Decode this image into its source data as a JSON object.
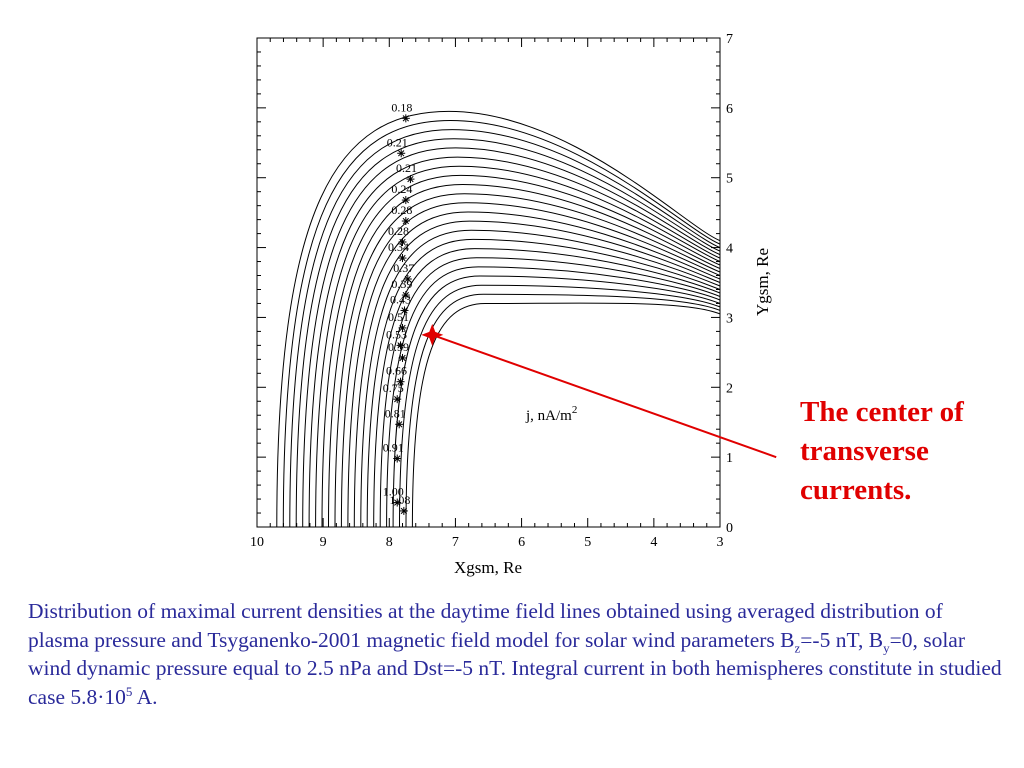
{
  "chart_data": {
    "type": "line",
    "xlabel": "Xgsm, Re",
    "ylabel": "Ygsm, Re",
    "xlim": [
      10,
      3
    ],
    "ylim": [
      0,
      7
    ],
    "x_ticks": [
      "10",
      "9",
      "8",
      "7",
      "6",
      "5",
      "4",
      "3"
    ],
    "y_ticks": [
      "0",
      "1",
      "2",
      "3",
      "4",
      "5",
      "6",
      "7"
    ],
    "y_axis_side": "right",
    "grid": false,
    "inner_label": {
      "text": "j, nA/m",
      "sup": "2"
    },
    "field_lines": {
      "count": 22,
      "apex_y_outer": 5.95,
      "apex_y_inner": 3.2,
      "right_y_outer": 4.1,
      "right_y_inner": 3.05
    },
    "current_density_labels": [
      {
        "label": "0.18",
        "x": 7.75,
        "y": 5.85
      },
      {
        "label": "0.21",
        "x": 7.82,
        "y": 5.35
      },
      {
        "label": "0.21",
        "x": 7.68,
        "y": 4.98
      },
      {
        "label": "0.24",
        "x": 7.75,
        "y": 4.68
      },
      {
        "label": "0.28",
        "x": 7.75,
        "y": 4.38
      },
      {
        "label": "0.28",
        "x": 7.8,
        "y": 4.08
      },
      {
        "label": "0.34",
        "x": 7.8,
        "y": 3.85
      },
      {
        "label": "0.37",
        "x": 7.72,
        "y": 3.55
      },
      {
        "label": "0.39",
        "x": 7.75,
        "y": 3.32
      },
      {
        "label": "0.43",
        "x": 7.77,
        "y": 3.1
      },
      {
        "label": "0.51",
        "x": 7.8,
        "y": 2.85
      },
      {
        "label": "0.53",
        "x": 7.83,
        "y": 2.6
      },
      {
        "label": "0.59",
        "x": 7.8,
        "y": 2.42
      },
      {
        "label": "0.66",
        "x": 7.83,
        "y": 2.08
      },
      {
        "label": "0.75",
        "x": 7.88,
        "y": 1.83
      },
      {
        "label": "0.81",
        "x": 7.85,
        "y": 1.47
      },
      {
        "label": "0.91",
        "x": 7.88,
        "y": 0.98
      },
      {
        "label": "1.00",
        "x": 7.88,
        "y": 0.35
      },
      {
        "label": "1.08",
        "x": 7.78,
        "y": 0.23
      }
    ],
    "marker": {
      "x": 7.35,
      "y": 2.75,
      "color": "#e00000"
    },
    "pointer_end": {
      "x": 2.15,
      "y": 1.0
    }
  },
  "annotation": {
    "lines": [
      "The center of",
      "transverse",
      "currents."
    ]
  },
  "caption": {
    "p1": "Distribution of maximal current densities at the daytime field lines obtained using averaged distribution of plasma pressure and Tsyganenko-2001 magnetic field model for solar wind parameters B",
    "bz_sub": "z",
    "p2": "=-5 nT, B",
    "by_sub": "y",
    "p3": "=0, solar wind dynamic pressure equal to 2.5 nPa and Dst=-5 nT. Integral current in both hemispheres constitute in studied case 5.8·10",
    "exp": "5",
    "p4": " A."
  },
  "colors": {
    "plot": "#000000",
    "accent": "#e00000",
    "caption": "#2a2a9a"
  }
}
